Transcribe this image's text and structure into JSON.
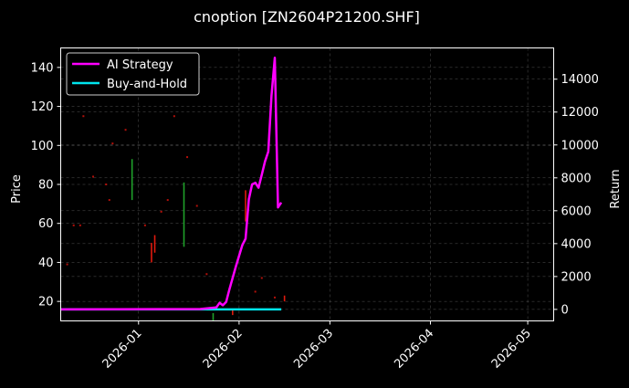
{
  "chart_data": {
    "type": "line",
    "title": "cnoption [ZN2604P21200.SHF]",
    "ylabel": "Price",
    "y2label": "Return",
    "x_ticks": [
      "2026-01",
      "2026-02",
      "2026-03",
      "2026-04",
      "2026-05"
    ],
    "x_range": [
      "2025-12-08",
      "2026-05-09"
    ],
    "y_ticks": [
      20,
      40,
      60,
      80,
      100,
      120,
      140
    ],
    "ylim": [
      10,
      150
    ],
    "y2_ticks": [
      0,
      2000,
      4000,
      6000,
      8000,
      10000,
      12000,
      14000
    ],
    "y2lim": [
      -700,
      15900
    ],
    "grid": true,
    "legend_position": "top-left",
    "series": [
      {
        "name": "AI Strategy",
        "color": "#ff00ff",
        "axis": "return",
        "points": [
          [
            "2025-12-08",
            0
          ],
          [
            "2026-01-20",
            20
          ],
          [
            "2026-01-25",
            120
          ],
          [
            "2026-01-26",
            400
          ],
          [
            "2026-01-27",
            250
          ],
          [
            "2026-01-28",
            450
          ],
          [
            "2026-01-29",
            1200
          ],
          [
            "2026-01-31",
            2600
          ],
          [
            "2026-02-02",
            3900
          ],
          [
            "2026-02-03",
            4300
          ],
          [
            "2026-02-04",
            6700
          ],
          [
            "2026-02-05",
            7600
          ],
          [
            "2026-02-06",
            7700
          ],
          [
            "2026-02-07",
            7400
          ],
          [
            "2026-02-08",
            8200
          ],
          [
            "2026-02-09",
            9000
          ],
          [
            "2026-02-10",
            9600
          ],
          [
            "2026-02-11",
            13000
          ],
          [
            "2026-02-12",
            15300
          ],
          [
            "2026-02-13",
            6200
          ],
          [
            "2026-02-14",
            6500
          ]
        ]
      },
      {
        "name": "Buy-and-Hold",
        "color": "#00e5ee",
        "axis": "return",
        "points": [
          [
            "2025-12-08",
            0
          ],
          [
            "2026-02-14",
            0
          ]
        ]
      }
    ],
    "candles": [
      {
        "date": "2025-12-30",
        "low": 72,
        "high": 93,
        "color": "#1fa12a"
      },
      {
        "date": "2026-01-05",
        "low": 40,
        "high": 50,
        "color": "#e01a0e"
      },
      {
        "date": "2026-01-06",
        "low": 45,
        "high": 54,
        "color": "#e01a0e"
      },
      {
        "date": "2026-01-15",
        "low": 48,
        "high": 81,
        "color": "#1fa12a"
      },
      {
        "date": "2026-01-24",
        "low": 10,
        "high": 14,
        "color": "#1fa12a"
      },
      {
        "date": "2026-01-30",
        "low": 13,
        "high": 16,
        "color": "#e01a0e"
      },
      {
        "date": "2026-02-03",
        "low": 61,
        "high": 77,
        "color": "#e01a0e"
      },
      {
        "date": "2026-02-15",
        "low": 20,
        "high": 23,
        "color": "#e01a0e"
      }
    ],
    "price_dots": [
      {
        "date": "2025-12-10",
        "value": 39
      },
      {
        "date": "2025-12-12",
        "value": 59
      },
      {
        "date": "2025-12-14",
        "value": 59
      },
      {
        "date": "2025-12-15",
        "value": 115
      },
      {
        "date": "2025-12-18",
        "value": 84
      },
      {
        "date": "2025-12-22",
        "value": 80
      },
      {
        "date": "2025-12-23",
        "value": 72
      },
      {
        "date": "2025-12-24",
        "value": 101
      },
      {
        "date": "2025-12-28",
        "value": 108
      },
      {
        "date": "2026-01-03",
        "value": 59
      },
      {
        "date": "2026-01-08",
        "value": 66
      },
      {
        "date": "2026-01-10",
        "value": 72
      },
      {
        "date": "2026-01-12",
        "value": 115
      },
      {
        "date": "2026-01-16",
        "value": 94
      },
      {
        "date": "2026-01-19",
        "value": 69
      },
      {
        "date": "2026-01-22",
        "value": 34
      },
      {
        "date": "2026-02-06",
        "value": 25
      },
      {
        "date": "2026-02-08",
        "value": 32
      },
      {
        "date": "2026-02-12",
        "value": 22
      }
    ]
  }
}
